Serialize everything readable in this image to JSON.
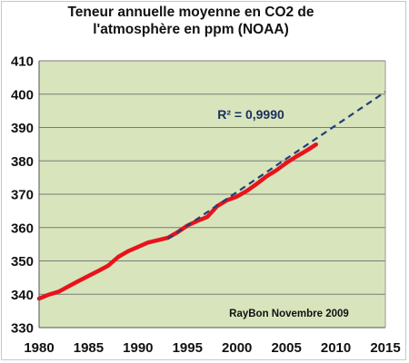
{
  "colors": {
    "plot_background": "#d8e4bc",
    "grid": "#7a7a7a",
    "data_series": "#e8131b",
    "trend_series": "#1f3f7a",
    "text": "#111111"
  },
  "chart_data": {
    "type": "line",
    "title_lines": [
      "Teneur annuelle moyenne en CO2 de",
      "l'atmosphère en ppm (NOAA)"
    ],
    "xlabel": "",
    "ylabel": "",
    "xlim": [
      1980,
      2015
    ],
    "ylim": [
      330,
      410
    ],
    "x_ticks": [
      1980,
      1985,
      1990,
      1995,
      2000,
      2005,
      2010,
      2015
    ],
    "y_ticks": [
      330,
      340,
      350,
      360,
      370,
      380,
      390,
      400,
      410
    ],
    "x_tick_labels": [
      "1980",
      "1985",
      "1990",
      "1995",
      "2000",
      "2005",
      "2010",
      "2015"
    ],
    "y_tick_labels": [
      "330",
      "340",
      "350",
      "360",
      "370",
      "380",
      "390",
      "400",
      "410"
    ],
    "grid": "horizontal",
    "legend": "none",
    "series": [
      {
        "style": "solid",
        "x": [
          1980,
          1981,
          1982,
          1983,
          1984,
          1985,
          1986,
          1987,
          1988,
          1989,
          1990,
          1991,
          1992,
          1993,
          1994,
          1995,
          1996,
          1997,
          1998,
          1999,
          2000,
          2001,
          2002,
          2003,
          2004,
          2005,
          2006,
          2007,
          2008
        ],
        "values": [
          338.7,
          339.9,
          340.8,
          342.4,
          344.0,
          345.5,
          347.0,
          348.6,
          351.2,
          352.9,
          354.2,
          355.5,
          356.2,
          356.9,
          358.6,
          360.6,
          362.0,
          363.2,
          366.4,
          368.2,
          369.3,
          371.0,
          373.1,
          375.4,
          377.2,
          379.4,
          381.3,
          383.0,
          384.9
        ]
      },
      {
        "style": "dashed",
        "x": [
          1993,
          2015
        ],
        "values": [
          356.6,
          400.7
        ]
      }
    ],
    "annotations": [
      "R² = 0,9990",
      "RayBon Novembre 2009"
    ]
  }
}
